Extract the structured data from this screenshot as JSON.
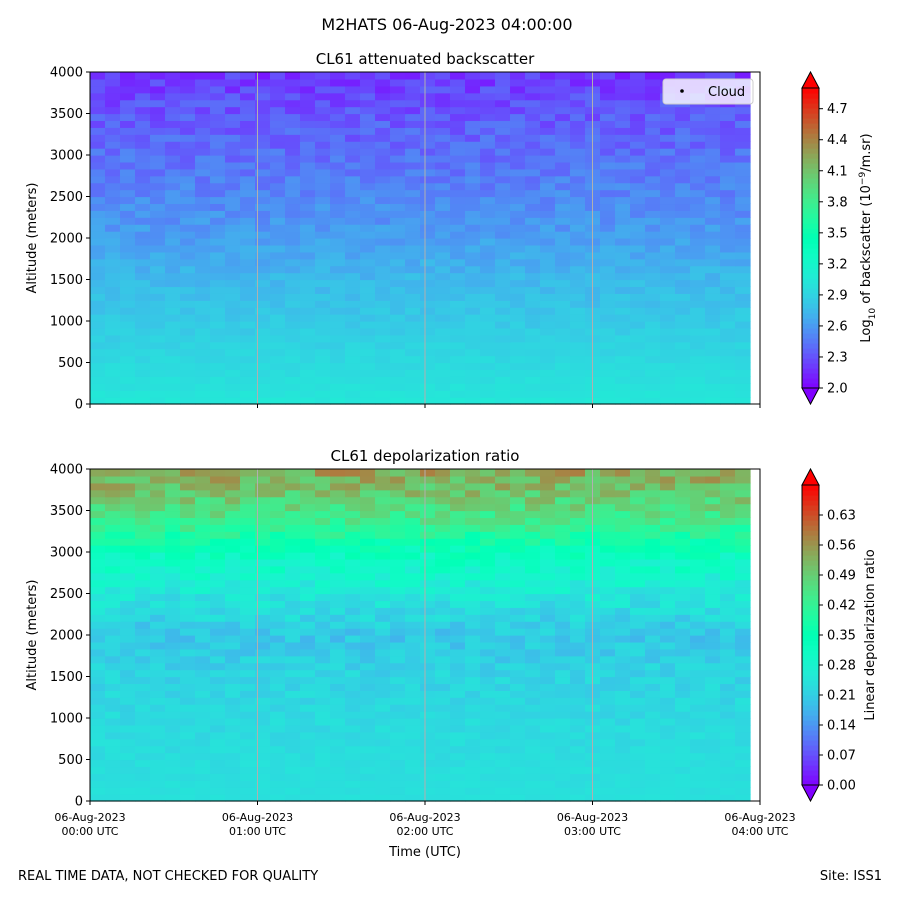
{
  "figure": {
    "suptitle": "M2HATS 06-Aug-2023 04:00:00",
    "footer_left": "REAL TIME DATA, NOT CHECKED FOR QUALITY",
    "footer_right": "Site: ISS1"
  },
  "chart_data": [
    {
      "type": "heatmap",
      "title": "CL61 attenuated backscatter",
      "ylabel": "Altitude (meters)",
      "xlabel": "",
      "ylim": [
        0,
        4000
      ],
      "yticks": [
        0,
        500,
        1000,
        1500,
        2000,
        2500,
        3000,
        3500,
        4000
      ],
      "xticks": [
        {
          "date": "06-Aug-2023",
          "time": "00:00 UTC"
        },
        {
          "date": "06-Aug-2023",
          "time": "01:00 UTC"
        },
        {
          "date": "06-Aug-2023",
          "time": "02:00 UTC"
        },
        {
          "date": "06-Aug-2023",
          "time": "03:00 UTC"
        },
        {
          "date": "06-Aug-2023",
          "time": "04:00 UTC"
        }
      ],
      "show_xtick_labels": false,
      "grid": "vertical",
      "legend": {
        "label": "Cloud",
        "position": "top-right"
      },
      "colorbar": {
        "label_prefix": "Log",
        "label_sub": "10",
        "label_mid": " of backscatter (10",
        "label_sup": "−9",
        "label_suffix": "/m.sr)",
        "range": [
          2.0,
          4.9
        ],
        "ticks": [
          "2.0",
          "2.3",
          "2.6",
          "2.9",
          "3.2",
          "3.5",
          "3.8",
          "4.1",
          "4.4",
          "4.7"
        ],
        "extend": "both"
      },
      "profile": [
        {
          "altitude": 0,
          "value": 3.05
        },
        {
          "altitude": 200,
          "value": 3.0
        },
        {
          "altitude": 800,
          "value": 2.88
        },
        {
          "altitude": 1500,
          "value": 2.75
        },
        {
          "altitude": 2000,
          "value": 2.62
        },
        {
          "altitude": 2500,
          "value": 2.52
        },
        {
          "altitude": 3000,
          "value": 2.42
        },
        {
          "altitude": 3500,
          "value": 2.32
        },
        {
          "altitude": 4000,
          "value": 2.2
        }
      ]
    },
    {
      "type": "heatmap",
      "title": "CL61 depolarization ratio",
      "ylabel": "Altitude (meters)",
      "xlabel": "Time (UTC)",
      "ylim": [
        0,
        4000
      ],
      "yticks": [
        0,
        500,
        1000,
        1500,
        2000,
        2500,
        3000,
        3500,
        4000
      ],
      "xticks": [
        {
          "date": "06-Aug-2023",
          "time": "00:00 UTC"
        },
        {
          "date": "06-Aug-2023",
          "time": "01:00 UTC"
        },
        {
          "date": "06-Aug-2023",
          "time": "02:00 UTC"
        },
        {
          "date": "06-Aug-2023",
          "time": "03:00 UTC"
        },
        {
          "date": "06-Aug-2023",
          "time": "04:00 UTC"
        }
      ],
      "show_xtick_labels": true,
      "grid": "vertical",
      "colorbar": {
        "label": "Linear depolarization ratio",
        "range": [
          0.0,
          0.7
        ],
        "ticks": [
          "0.00",
          "0.07",
          "0.14",
          "0.21",
          "0.28",
          "0.35",
          "0.42",
          "0.49",
          "0.56",
          "0.63"
        ],
        "extend": "both"
      },
      "profile": [
        {
          "altitude": 0,
          "value": 0.24
        },
        {
          "altitude": 800,
          "value": 0.23
        },
        {
          "altitude": 1500,
          "value": 0.22
        },
        {
          "altitude": 2000,
          "value": 0.2
        },
        {
          "altitude": 2500,
          "value": 0.25
        },
        {
          "altitude": 3000,
          "value": 0.33
        },
        {
          "altitude": 3300,
          "value": 0.42
        },
        {
          "altitude": 3600,
          "value": 0.48
        },
        {
          "altitude": 4000,
          "value": 0.55
        }
      ]
    }
  ]
}
